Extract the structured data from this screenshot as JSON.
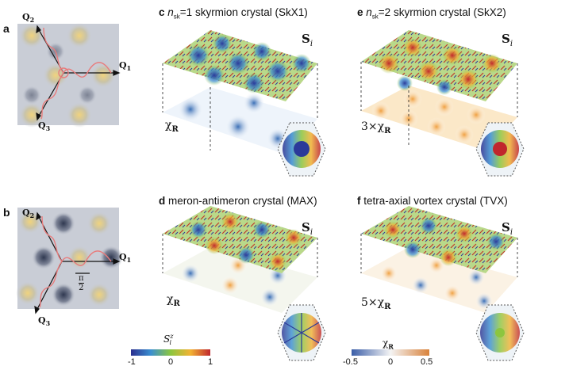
{
  "panels": {
    "a": {
      "label": "a",
      "q1": "Q",
      "q1_sub": "1",
      "q2": "Q",
      "q2_sub": "2",
      "q3": "Q",
      "q3_sub": "3"
    },
    "b": {
      "label": "b",
      "q1": "Q",
      "q1_sub": "1",
      "q2": "Q",
      "q2_sub": "2",
      "q3": "Q",
      "q3_sub": "3",
      "pi_num": "π",
      "pi_den": "2"
    },
    "c": {
      "label": "c",
      "n": "n",
      "n_sub": "sk",
      "title_rest": "=1 skyrmion crystal (SkX1)",
      "spin": "S",
      "spin_sub": "i",
      "chi": "χ",
      "chi_sub": "R"
    },
    "e": {
      "label": "e",
      "n": "n",
      "n_sub": "sk",
      "title_rest": "=2 skyrmion crystal (SkX2)",
      "spin": "S",
      "spin_sub": "i",
      "chi_prefix": "3×",
      "chi": "χ",
      "chi_sub": "R"
    },
    "d": {
      "label": "d",
      "title": "meron-antimeron crystal (MAX)",
      "spin": "S",
      "spin_sub": "i",
      "chi": "χ",
      "chi_sub": "R"
    },
    "f": {
      "label": "f",
      "title": "tetra-axial vortex crystal (TVX)",
      "spin": "S",
      "spin_sub": "i",
      "chi_prefix": "5×",
      "chi": "χ",
      "chi_sub": "R"
    }
  },
  "colorbars": {
    "spin": {
      "title": "S",
      "title_sub": "i",
      "title_sup": "z",
      "ticks": [
        "-1",
        "0",
        "1"
      ]
    },
    "chi": {
      "title": "χ",
      "title_sub": "R",
      "ticks": [
        "-0.5",
        "0",
        "0.5"
      ]
    }
  },
  "colors": {
    "jet_blue": "#2b3a9a",
    "jet_green": "#7cc242",
    "jet_red": "#c0392b",
    "map_dark": "#3a4256",
    "map_yellow": "#e9c46a",
    "wave": "#e87c7c",
    "chi_blue": "#3b6fb6",
    "chi_orange": "#e0903a"
  }
}
